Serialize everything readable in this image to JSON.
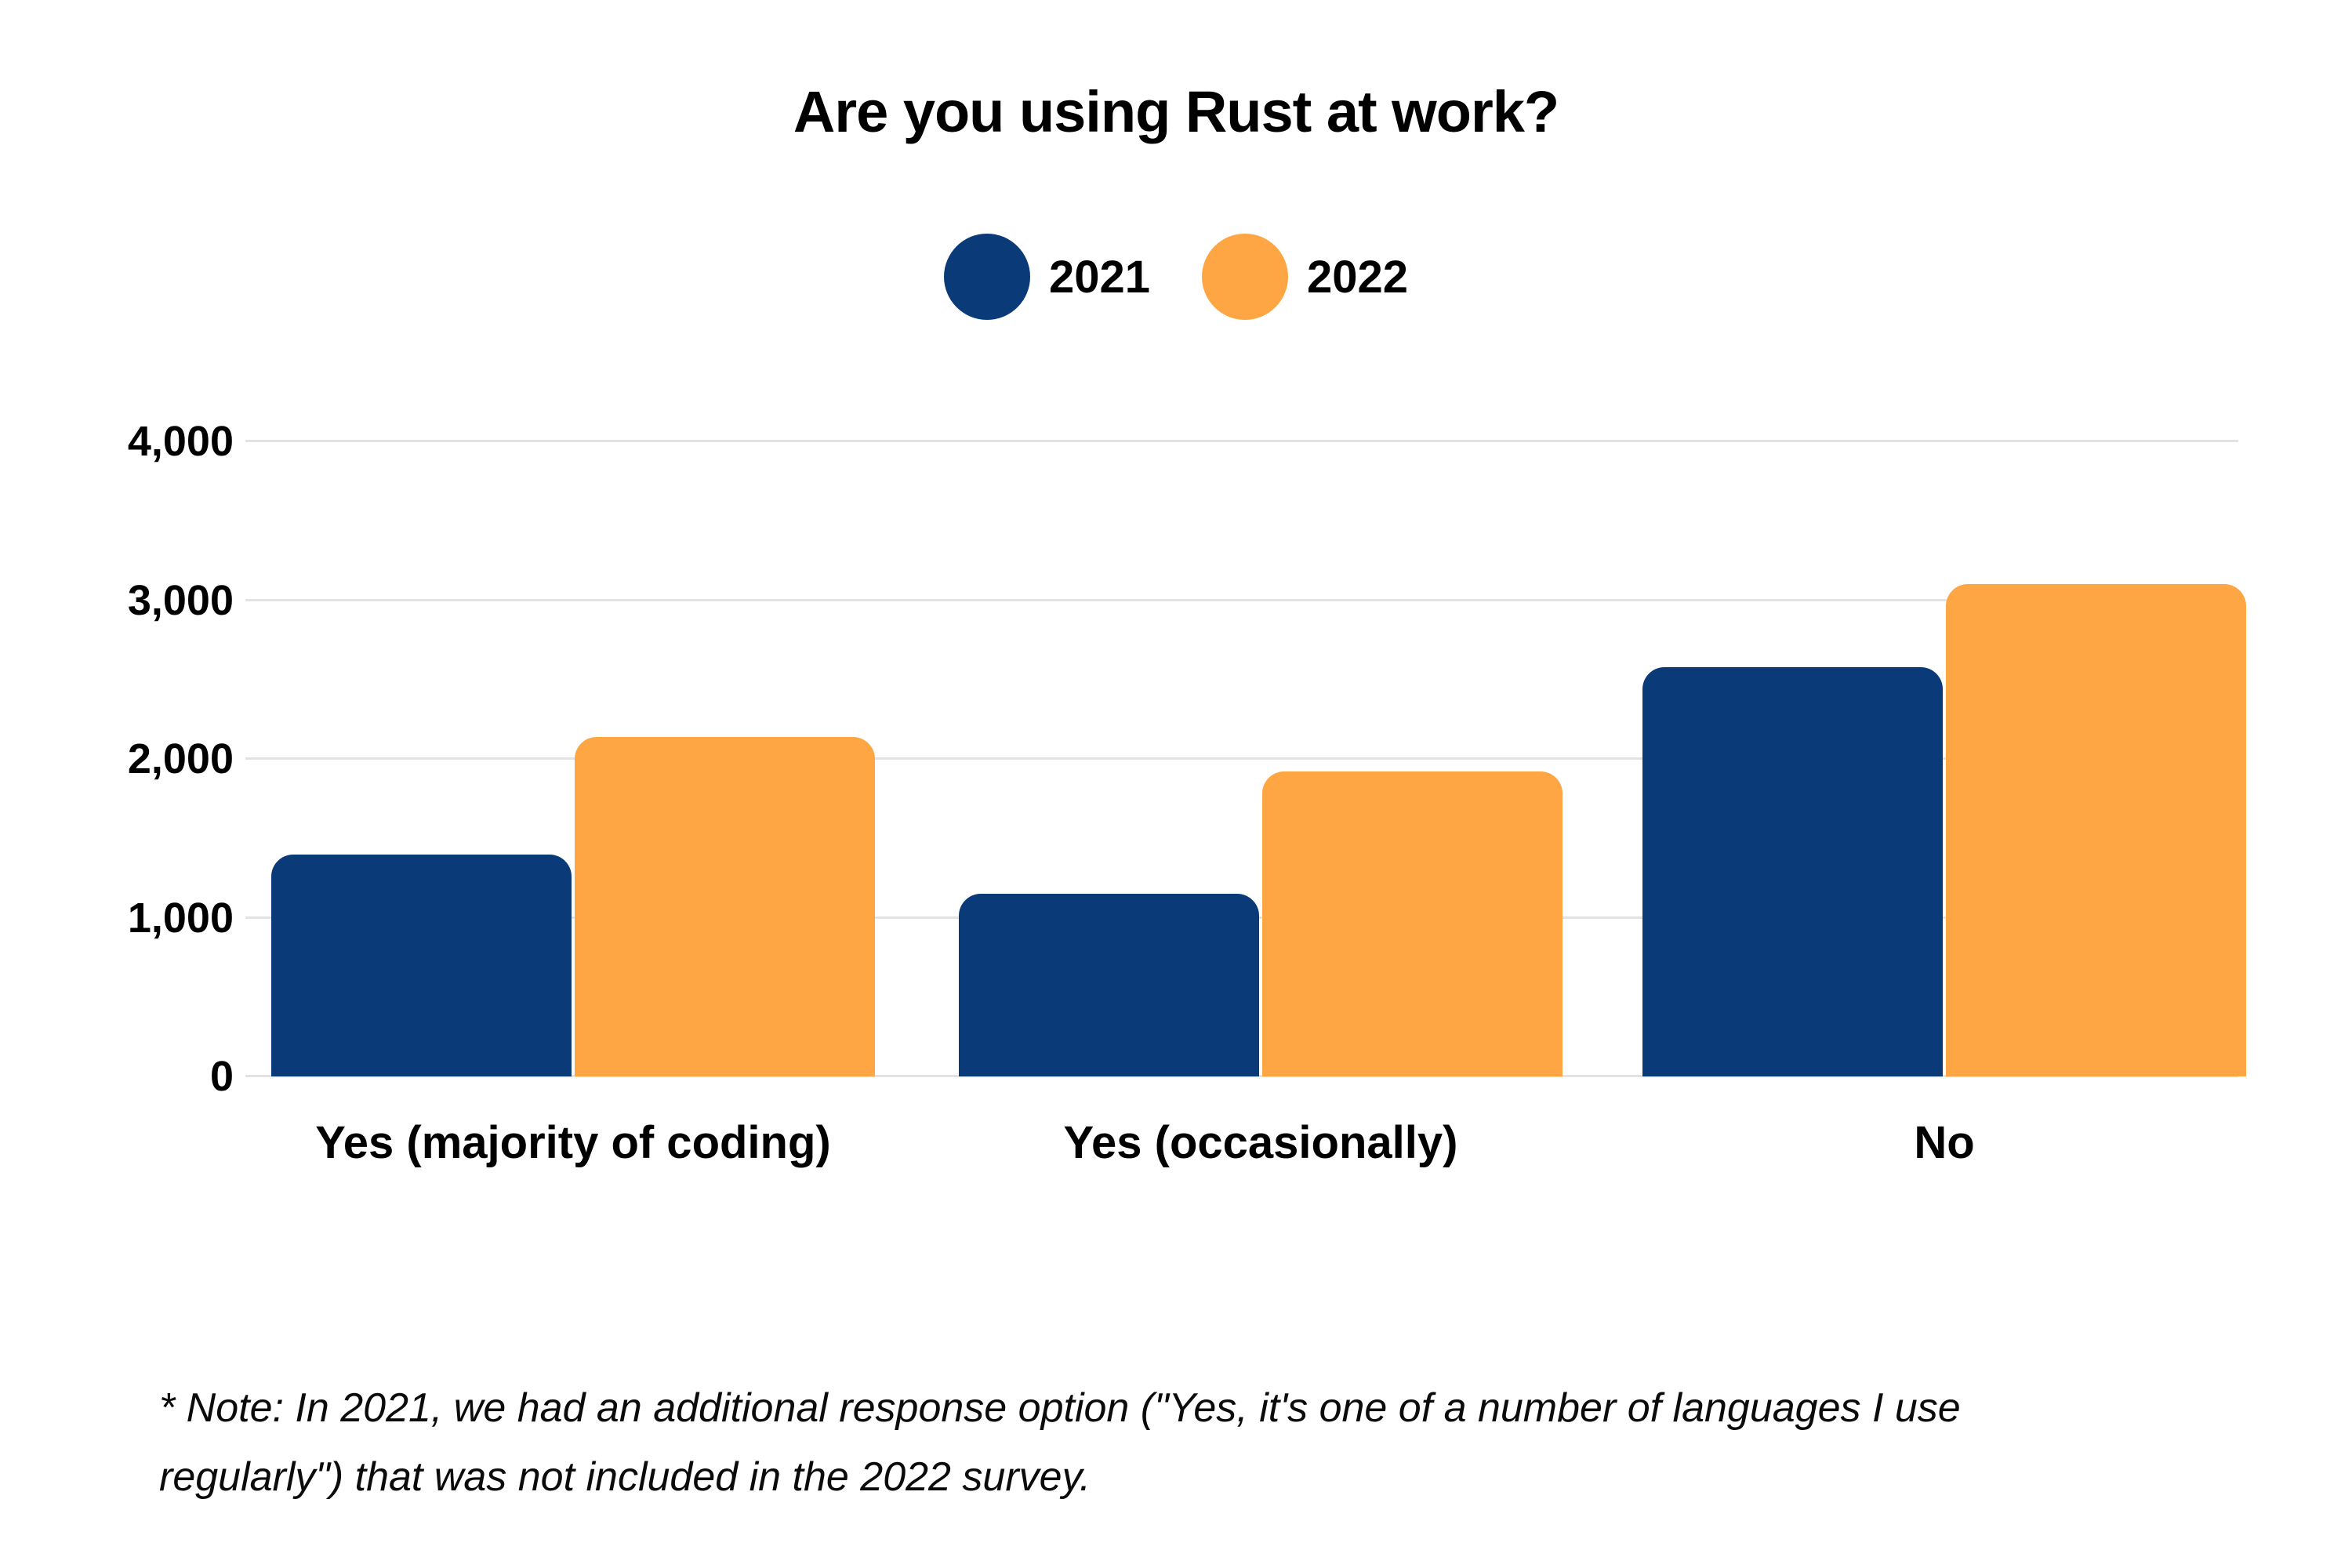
{
  "title": "Are you using Rust at work?",
  "legend": {
    "items": [
      {
        "label": "2021",
        "color": "#0A3A78"
      },
      {
        "label": "2022",
        "color": "#FDA643"
      }
    ]
  },
  "note": {
    "line1": "* Note: In 2021, we had an additional response option (\"Yes, it's one of a number of languages I use",
    "line2": "regularly\") that was not included in the 2022 survey."
  },
  "chart_data": {
    "type": "bar",
    "title": "Are you using Rust at work?",
    "categories": [
      "Yes (majority of coding)",
      "Yes (occasionally)",
      "No"
    ],
    "series": [
      {
        "name": "2021",
        "color": "#0A3A78",
        "values": [
          1400,
          1150,
          2580
        ]
      },
      {
        "name": "2022",
        "color": "#FDA643",
        "values": [
          2140,
          1920,
          3100
        ]
      }
    ],
    "ylim": [
      0,
      4000
    ],
    "yticks": [
      {
        "value": 0,
        "label": "0"
      },
      {
        "value": 1000,
        "label": "1,000"
      },
      {
        "value": 2000,
        "label": "2,000"
      },
      {
        "value": 3000,
        "label": "3,000"
      },
      {
        "value": 4000,
        "label": "4,000"
      }
    ],
    "grid": "horizontal",
    "gridline_color": "#E3E3E3",
    "legend_position": "top-center",
    "xlabel": "",
    "ylabel": ""
  }
}
